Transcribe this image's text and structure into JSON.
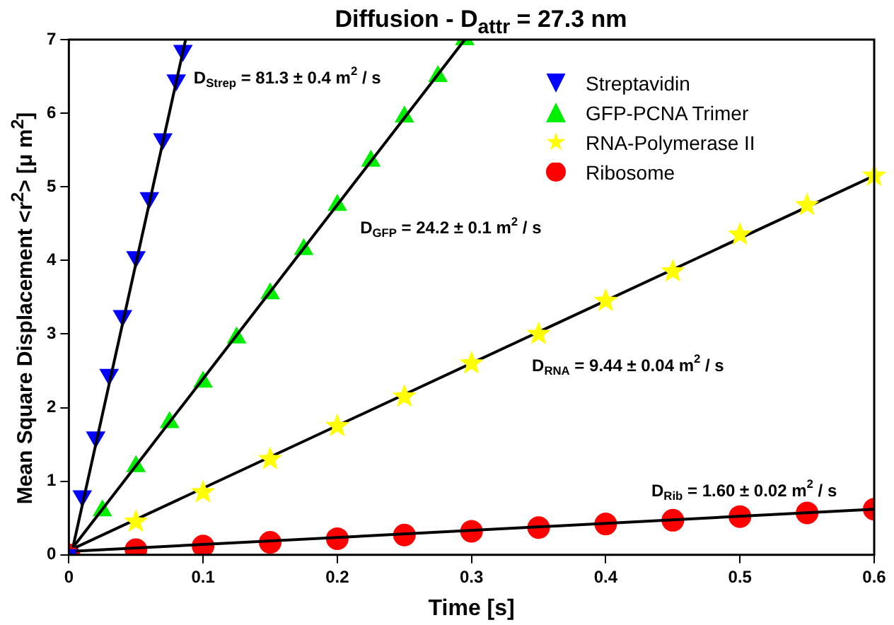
{
  "chart_data": {
    "type": "scatter",
    "title": "Diffusion - D$_{attr}$ = 27.3 nm",
    "xlabel": "Time [s]",
    "ylabel": "Mean Square Displacement <r$^{2}$> [μ m$^{2}$]",
    "xlim": [
      0,
      0.6
    ],
    "ylim": [
      0,
      7
    ],
    "xticks": [
      0,
      0.1,
      0.2,
      0.3,
      0.4,
      0.5,
      0.6
    ],
    "yticks": [
      0,
      1,
      2,
      3,
      4,
      5,
      6,
      7
    ],
    "grid": false,
    "legend": "top right",
    "series": [
      {
        "name": "Streptavidin",
        "color": "#0000ff",
        "marker": "triangle-down",
        "x": [
          0,
          0.01,
          0.02,
          0.03,
          0.04,
          0.05,
          0.06,
          0.07,
          0.08,
          0.085
        ],
        "values": [
          0,
          0.8,
          1.6,
          2.45,
          3.25,
          4.05,
          4.85,
          5.65,
          6.45,
          6.85
        ]
      },
      {
        "name": "GFP-PCNA Trimer",
        "color": "#00ee00",
        "marker": "triangle",
        "x": [
          0.025,
          0.05,
          0.075,
          0.1,
          0.125,
          0.15,
          0.175,
          0.2,
          0.225,
          0.25,
          0.275,
          0.295
        ],
        "values": [
          0.6,
          1.2,
          1.8,
          2.35,
          2.95,
          3.55,
          4.15,
          4.75,
          5.35,
          5.95,
          6.5,
          7.0
        ]
      },
      {
        "name": "RNA-Polymerase II",
        "color": "#ffff00",
        "marker": "star",
        "x": [
          0.05,
          0.1,
          0.15,
          0.2,
          0.25,
          0.3,
          0.35,
          0.4,
          0.45,
          0.5,
          0.55,
          0.6
        ],
        "values": [
          0.45,
          0.85,
          1.3,
          1.75,
          2.15,
          2.6,
          3.0,
          3.45,
          3.85,
          4.35,
          4.75,
          5.15
        ]
      },
      {
        "name": "Ribosome",
        "color": "#ff0000",
        "marker": "circle",
        "x": [
          0,
          0.05,
          0.1,
          0.15,
          0.2,
          0.25,
          0.3,
          0.35,
          0.4,
          0.45,
          0.5,
          0.55,
          0.6
        ],
        "values": [
          0,
          0.07,
          0.12,
          0.17,
          0.22,
          0.27,
          0.32,
          0.37,
          0.42,
          0.47,
          0.52,
          0.57,
          0.62
        ]
      },
      {
        "type": "line",
        "color": "#000000",
        "x": [
          0.003,
          0.087
        ],
        "values": [
          0.1,
          7.0
        ]
      },
      {
        "type": "line",
        "color": "#000000",
        "x": [
          0.003,
          0.295
        ],
        "values": [
          0.1,
          7.0
        ]
      },
      {
        "type": "line",
        "color": "#000000",
        "x": [
          0.005,
          0.6
        ],
        "values": [
          0.1,
          5.15
        ]
      },
      {
        "type": "line",
        "color": "#000000",
        "x": [
          0.005,
          0.6
        ],
        "values": [
          0.05,
          0.62
        ]
      }
    ],
    "annotations": [
      "D$_{Strep}$ = 81.3 ± 0.4 m$^{2}$ / s",
      "D$_{GFP}$ = 24.2 ± 0.1 m$^{2}$ / s",
      "D$_{RNA}$ = 9.44 ± 0.04 m$^{2}$ / s",
      "D$_{Rib}$ = 1.60 ± 0.02 m$^{2}$ / s"
    ]
  }
}
